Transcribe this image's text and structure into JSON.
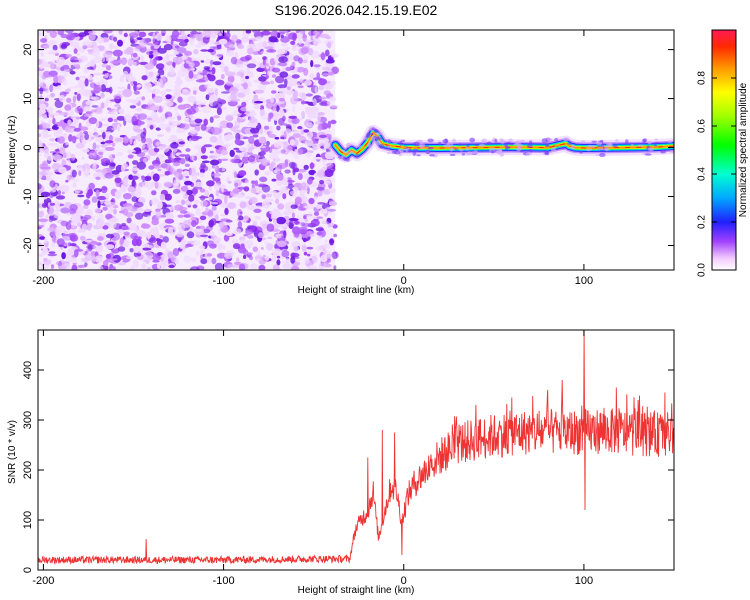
{
  "title": "S196.2026.042.15.19.E02",
  "chart_data": [
    {
      "type": "heatmap",
      "xlabel": "Height of straight line (km)",
      "ylabel": "Frequency (Hz)",
      "xlim": [
        -203,
        150
      ],
      "ylim": [
        -25,
        24
      ],
      "xticks": [
        -200,
        -100,
        0,
        100
      ],
      "yticks": [
        -20,
        -10,
        0,
        10,
        20
      ],
      "xtick_labels": [
        "-200",
        "-100",
        "0",
        "100"
      ],
      "ytick_labels": [
        "-20",
        "-10",
        "0",
        "10",
        "20"
      ],
      "noise_region_x": [
        -203,
        -38
      ],
      "signal_track": {
        "x": [
          -38,
          -35,
          -32,
          -29,
          -26,
          -23,
          -20,
          -17,
          -15,
          -12,
          -9,
          -6,
          -3,
          0,
          20,
          40,
          60,
          80,
          90,
          92,
          95,
          100,
          120,
          140,
          150
        ],
        "y": [
          0.5,
          -0.8,
          -1.5,
          -0.5,
          -1.2,
          -0.3,
          1.0,
          3.0,
          2.5,
          0.8,
          0.5,
          0.3,
          0.2,
          0.0,
          -0.1,
          0.0,
          0.1,
          0.0,
          0.8,
          0.3,
          0.0,
          -0.1,
          0.0,
          0.1,
          0.3
        ]
      },
      "colorbar": {
        "label": "Normalized spectral amplitude",
        "range": [
          0,
          1
        ],
        "ticks": [
          0.0,
          0.2,
          0.4,
          0.6,
          0.8
        ],
        "tick_labels": [
          "0.0",
          "0.2",
          "0.4",
          "0.6",
          "0.8"
        ]
      }
    },
    {
      "type": "line",
      "xlabel": "Height of straight line (km)",
      "ylabel": "SNR (10 * v/v)",
      "xlim": [
        -203,
        150
      ],
      "ylim": [
        0,
        480
      ],
      "xticks": [
        -200,
        -100,
        0,
        100
      ],
      "yticks": [
        0,
        100,
        200,
        300,
        400
      ],
      "xtick_labels": [
        "-200",
        "-100",
        "0",
        "100"
      ],
      "ytick_labels": [
        "0",
        "100",
        "200",
        "300",
        "400"
      ],
      "color": "#ee3333",
      "series": [
        {
          "name": "SNR",
          "trend": {
            "x": [
              -203,
              -150,
              -100,
              -50,
              -30,
              -27,
              -24,
              -20,
              -17,
              -14,
              -10,
              -7,
              -4,
              -1,
              2,
              6,
              10,
              15,
              20,
              30,
              40,
              50,
              60,
              70,
              80,
              90,
              100,
              110,
              120,
              130,
              140,
              150
            ],
            "y": [
              18,
              18,
              18,
              20,
              20,
              75,
              95,
              110,
              150,
              60,
              120,
              160,
              150,
              90,
              140,
              165,
              180,
              200,
              215,
              240,
              248,
              255,
              260,
              262,
              262,
              262,
              262,
              265,
              262,
              260,
              258,
              258
            ]
          },
          "spikes": [
            {
              "x": -143,
              "y": 62
            },
            {
              "x": -20,
              "y": 225
            },
            {
              "x": -12,
              "y": 280
            },
            {
              "x": -5,
              "y": 275
            },
            {
              "x": -1,
              "y": 30
            },
            {
              "x": 40,
              "y": 330
            },
            {
              "x": 60,
              "y": 345
            },
            {
              "x": 80,
              "y": 360
            },
            {
              "x": 88,
              "y": 380
            },
            {
              "x": 100,
              "y": 480
            },
            {
              "x": 100.5,
              "y": 120
            },
            {
              "x": 118,
              "y": 365
            },
            {
              "x": 130,
              "y": 340
            },
            {
              "x": 145,
              "y": 355
            }
          ]
        }
      ]
    }
  ]
}
